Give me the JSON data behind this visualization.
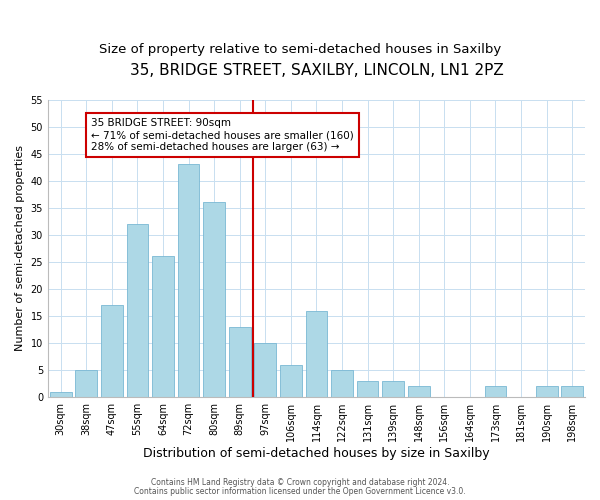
{
  "title": "35, BRIDGE STREET, SAXILBY, LINCOLN, LN1 2PZ",
  "subtitle": "Size of property relative to semi-detached houses in Saxilby",
  "xlabel": "Distribution of semi-detached houses by size in Saxilby",
  "ylabel": "Number of semi-detached properties",
  "categories": [
    "30sqm",
    "38sqm",
    "47sqm",
    "55sqm",
    "64sqm",
    "72sqm",
    "80sqm",
    "89sqm",
    "97sqm",
    "106sqm",
    "114sqm",
    "122sqm",
    "131sqm",
    "139sqm",
    "148sqm",
    "156sqm",
    "164sqm",
    "173sqm",
    "181sqm",
    "190sqm",
    "198sqm"
  ],
  "values": [
    1,
    5,
    17,
    32,
    26,
    43,
    36,
    13,
    10,
    6,
    16,
    5,
    3,
    3,
    2,
    0,
    0,
    2,
    0,
    2,
    2
  ],
  "bar_color": "#add8e6",
  "bar_edge_color": "#7ab8d4",
  "highlight_index": 7,
  "highlight_line_color": "#cc0000",
  "annotation_title": "35 BRIDGE STREET: 90sqm",
  "annotation_line1": "← 71% of semi-detached houses are smaller (160)",
  "annotation_line2": "28% of semi-detached houses are larger (63) →",
  "annotation_box_color": "#ffffff",
  "annotation_box_edge": "#cc0000",
  "ylim": [
    0,
    55
  ],
  "yticks": [
    0,
    5,
    10,
    15,
    20,
    25,
    30,
    35,
    40,
    45,
    50,
    55
  ],
  "footnote1": "Contains HM Land Registry data © Crown copyright and database right 2024.",
  "footnote2": "Contains public sector information licensed under the Open Government Licence v3.0.",
  "bg_color": "#ffffff",
  "grid_color": "#c8dff0",
  "title_fontsize": 11,
  "subtitle_fontsize": 9.5,
  "tick_fontsize": 7,
  "ylabel_fontsize": 8,
  "xlabel_fontsize": 9,
  "annotation_fontsize": 7.5,
  "footnote_fontsize": 5.5
}
